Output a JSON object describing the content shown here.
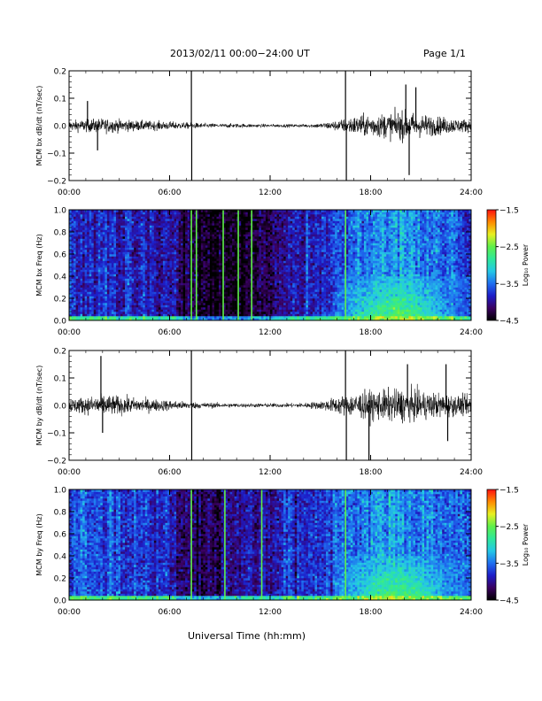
{
  "header": {
    "title": "2013/02/11  00:00−24:00 UT",
    "page": "Page 1/1"
  },
  "colors": {
    "trace": "#000000",
    "colormap": [
      "#000000",
      "#3a0060",
      "#1d1dc8",
      "#1f6ff0",
      "#24c8e6",
      "#2ee89a",
      "#5ef04a",
      "#e8f020",
      "#ff8a00",
      "#ff1010"
    ]
  },
  "chart_data": [
    {
      "type": "line",
      "ylabel": "MCM bx dB/dt (nT/sec)",
      "ylim": [
        -0.2,
        0.2
      ],
      "yticks": [
        "0.2",
        "0.1",
        "0.0",
        "−0.1",
        "−0.2"
      ],
      "xticks": [
        "00:00",
        "06:00",
        "12:00",
        "18:00",
        "24:00"
      ],
      "xlim_hours": [
        0,
        24
      ],
      "series": [
        {
          "envelope_hours": [
            0,
            1,
            2,
            3,
            4,
            5,
            6,
            7,
            8,
            9,
            10,
            11,
            12,
            13,
            14,
            15,
            16,
            17,
            18,
            19,
            20,
            21,
            22,
            23,
            24
          ],
          "envelope_amplitude": [
            0.025,
            0.03,
            0.035,
            0.03,
            0.025,
            0.022,
            0.02,
            0.015,
            0.012,
            0.01,
            0.01,
            0.009,
            0.008,
            0.008,
            0.008,
            0.012,
            0.025,
            0.045,
            0.055,
            0.06,
            0.07,
            0.055,
            0.045,
            0.035,
            0.03
          ],
          "spikes": [
            [
              1.1,
              0.09
            ],
            [
              1.7,
              -0.09
            ],
            [
              7.3,
              0.2
            ],
            [
              7.32,
              -0.2
            ],
            [
              16.5,
              0.2
            ],
            [
              16.55,
              -0.2
            ],
            [
              20.1,
              0.15
            ],
            [
              20.3,
              -0.18
            ],
            [
              20.7,
              0.14
            ]
          ]
        }
      ]
    },
    {
      "type": "heatmap",
      "ylabel": "MCM bx Freq (Hz)",
      "ylim": [
        0,
        1.0
      ],
      "yticks": [
        "1.0",
        "0.8",
        "0.6",
        "0.4",
        "0.2",
        "0.0"
      ],
      "xticks": [
        "00:00",
        "06:00",
        "12:00",
        "18:00",
        "24:00"
      ],
      "colorbar": {
        "label": "Log₁₀ Power",
        "range": [
          -4.5,
          -1.5
        ],
        "ticks": [
          "−1.5",
          "−2.5",
          "−3.5",
          "−4.5"
        ]
      },
      "background_hours": [
        0,
        2,
        4,
        6,
        7,
        8,
        9,
        10,
        11,
        12,
        13,
        14,
        15,
        16,
        17,
        18,
        19,
        20,
        21,
        22,
        23,
        24
      ],
      "background_power": [
        -3.8,
        -3.8,
        -3.9,
        -3.9,
        -4.3,
        -4.5,
        -4.4,
        -4.4,
        -4.3,
        -4.2,
        -3.9,
        -3.9,
        -3.7,
        -3.6,
        -3.5,
        -3.4,
        -3.3,
        -3.3,
        -3.4,
        -3.5,
        -3.6,
        -3.7
      ],
      "enhancement": {
        "hours": [
          16,
          24
        ],
        "freq_max": 0.4,
        "peak_hour": 19.5,
        "peak_power": -2.5
      },
      "vertical_lines_hours": [
        7.3,
        7.6,
        9.2,
        10.1,
        10.9,
        16.5
      ]
    },
    {
      "type": "line",
      "ylabel": "MCM by dB/dt (nT/sec)",
      "ylim": [
        -0.2,
        0.2
      ],
      "yticks": [
        "0.2",
        "0.1",
        "0.0",
        "−0.1",
        "−0.2"
      ],
      "xticks": [
        "00:00",
        "06:00",
        "12:00",
        "18:00",
        "24:00"
      ],
      "xlim_hours": [
        0,
        24
      ],
      "series": [
        {
          "envelope_hours": [
            0,
            1,
            2,
            3,
            4,
            5,
            6,
            7,
            8,
            9,
            10,
            11,
            12,
            13,
            14,
            15,
            16,
            17,
            18,
            19,
            20,
            21,
            22,
            23,
            24
          ],
          "envelope_amplitude": [
            0.035,
            0.04,
            0.05,
            0.045,
            0.035,
            0.03,
            0.025,
            0.018,
            0.014,
            0.012,
            0.01,
            0.01,
            0.01,
            0.01,
            0.012,
            0.02,
            0.04,
            0.06,
            0.07,
            0.075,
            0.08,
            0.07,
            0.06,
            0.05,
            0.045
          ],
          "spikes": [
            [
              1.9,
              0.18
            ],
            [
              2.0,
              -0.1
            ],
            [
              7.3,
              0.2
            ],
            [
              7.32,
              -0.2
            ],
            [
              16.5,
              0.2
            ],
            [
              16.55,
              -0.2
            ],
            [
              17.9,
              -0.2
            ],
            [
              20.2,
              0.15
            ],
            [
              22.5,
              0.15
            ],
            [
              22.6,
              -0.13
            ]
          ]
        }
      ]
    },
    {
      "type": "heatmap",
      "ylabel": "MCM by Freq (Hz)",
      "ylim": [
        0,
        1.0
      ],
      "yticks": [
        "1.0",
        "0.8",
        "0.6",
        "0.4",
        "0.2",
        "0.0"
      ],
      "xticks": [
        "00:00",
        "06:00",
        "12:00",
        "18:00",
        "24:00"
      ],
      "colorbar": {
        "label": "Log₁₀ Power",
        "range": [
          -4.5,
          -1.5
        ],
        "ticks": [
          "−1.5",
          "−2.5",
          "−3.5",
          "−4.5"
        ]
      },
      "background_hours": [
        0,
        2,
        4,
        6,
        7,
        8,
        9,
        10,
        11,
        12,
        13,
        14,
        15,
        16,
        17,
        18,
        19,
        20,
        21,
        22,
        23,
        24
      ],
      "background_power": [
        -3.6,
        -3.6,
        -3.7,
        -3.8,
        -4.1,
        -4.2,
        -4.1,
        -4.1,
        -4.0,
        -4.0,
        -3.8,
        -3.8,
        -3.7,
        -3.6,
        -3.5,
        -3.4,
        -3.3,
        -3.3,
        -3.4,
        -3.5,
        -3.6,
        -3.7
      ],
      "enhancement": {
        "hours": [
          16,
          24
        ],
        "freq_max": 0.4,
        "peak_hour": 19.5,
        "peak_power": -2.6
      },
      "vertical_lines_hours": [
        7.3,
        9.3,
        11.5,
        16.5
      ]
    }
  ],
  "xlabel": "Universal Time (hh:mm)"
}
